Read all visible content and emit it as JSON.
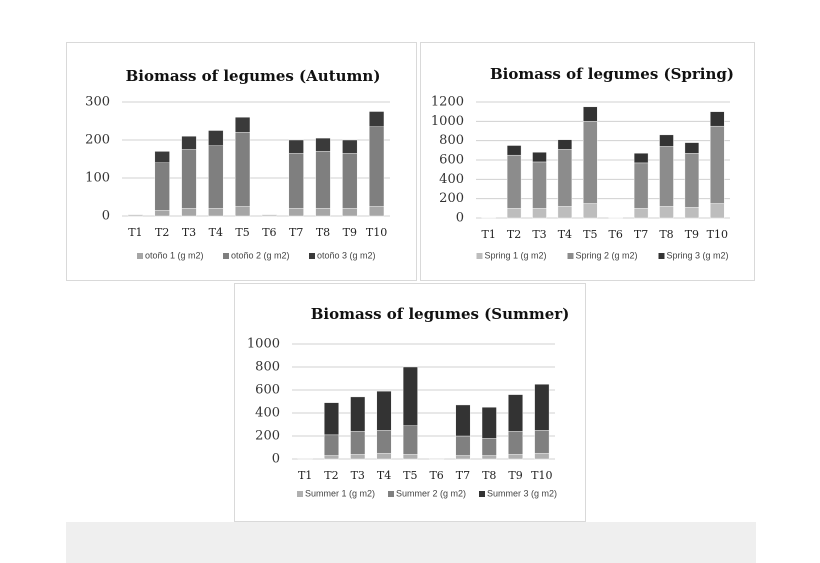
{
  "chart_data": [
    {
      "type": "bar",
      "stacked": true,
      "title": "Biomass of legumes (Autumn)",
      "categories": [
        "T1",
        "T2",
        "T3",
        "T4",
        "T5",
        "T6",
        "T7",
        "T8",
        "T9",
        "T10"
      ],
      "series": [
        {
          "name": "otoño 1 (g m2)",
          "color": "#a6a6a6",
          "values": [
            0,
            15,
            20,
            20,
            25,
            0,
            20,
            20,
            20,
            25
          ]
        },
        {
          "name": "otoño 2 (g m2)",
          "color": "#7f7f7f",
          "values": [
            2,
            125,
            155,
            165,
            195,
            2,
            145,
            150,
            145,
            210
          ]
        },
        {
          "name": "otoño 3 (g m2)",
          "color": "#3a3a3a",
          "values": [
            1,
            30,
            35,
            40,
            40,
            1,
            35,
            35,
            35,
            40
          ]
        }
      ],
      "ylim": [
        0,
        300
      ],
      "yticks": [
        0,
        100,
        200,
        300
      ],
      "grid": true,
      "legend": "bottom"
    },
    {
      "type": "bar",
      "stacked": true,
      "title": "Biomass of legumes (Spring)",
      "categories": [
        "T1",
        "T2",
        "T3",
        "T4",
        "T5",
        "T6",
        "T7",
        "T8",
        "T9",
        "T10"
      ],
      "series": [
        {
          "name": "Spring 1 (g m2)",
          "color": "#bdbdbd",
          "values": [
            2,
            100,
            100,
            120,
            150,
            1,
            100,
            120,
            110,
            150
          ]
        },
        {
          "name": "Spring 2 (g m2)",
          "color": "#8c8c8c",
          "values": [
            5,
            550,
            480,
            590,
            850,
            3,
            470,
            620,
            560,
            800
          ]
        },
        {
          "name": "Spring 3 (g m2)",
          "color": "#333333",
          "values": [
            3,
            100,
            100,
            100,
            150,
            1,
            100,
            120,
            110,
            150
          ]
        }
      ],
      "ylim": [
        0,
        1200
      ],
      "yticks": [
        0,
        200,
        400,
        600,
        800,
        1000,
        1200
      ],
      "grid": true,
      "legend": "bottom"
    },
    {
      "type": "bar",
      "stacked": true,
      "title": "Biomass of legumes (Summer)",
      "categories": [
        "T1",
        "T2",
        "T3",
        "T4",
        "T5",
        "T6",
        "T7",
        "T8",
        "T9",
        "T10"
      ],
      "series": [
        {
          "name": "Summer 1 (g m2)",
          "color": "#b0b0b0",
          "values": [
            2,
            30,
            40,
            50,
            40,
            1,
            30,
            30,
            40,
            50
          ]
        },
        {
          "name": "Summer 2 (g m2)",
          "color": "#808080",
          "values": [
            2,
            180,
            200,
            200,
            250,
            2,
            170,
            150,
            200,
            200
          ]
        },
        {
          "name": "Summer 3 (g m2)",
          "color": "#333333",
          "values": [
            1,
            280,
            300,
            340,
            510,
            2,
            270,
            270,
            320,
            400
          ]
        }
      ],
      "ylim": [
        0,
        1000
      ],
      "yticks": [
        0,
        200,
        400,
        600,
        800,
        1000
      ],
      "grid": true,
      "legend": "bottom"
    }
  ]
}
